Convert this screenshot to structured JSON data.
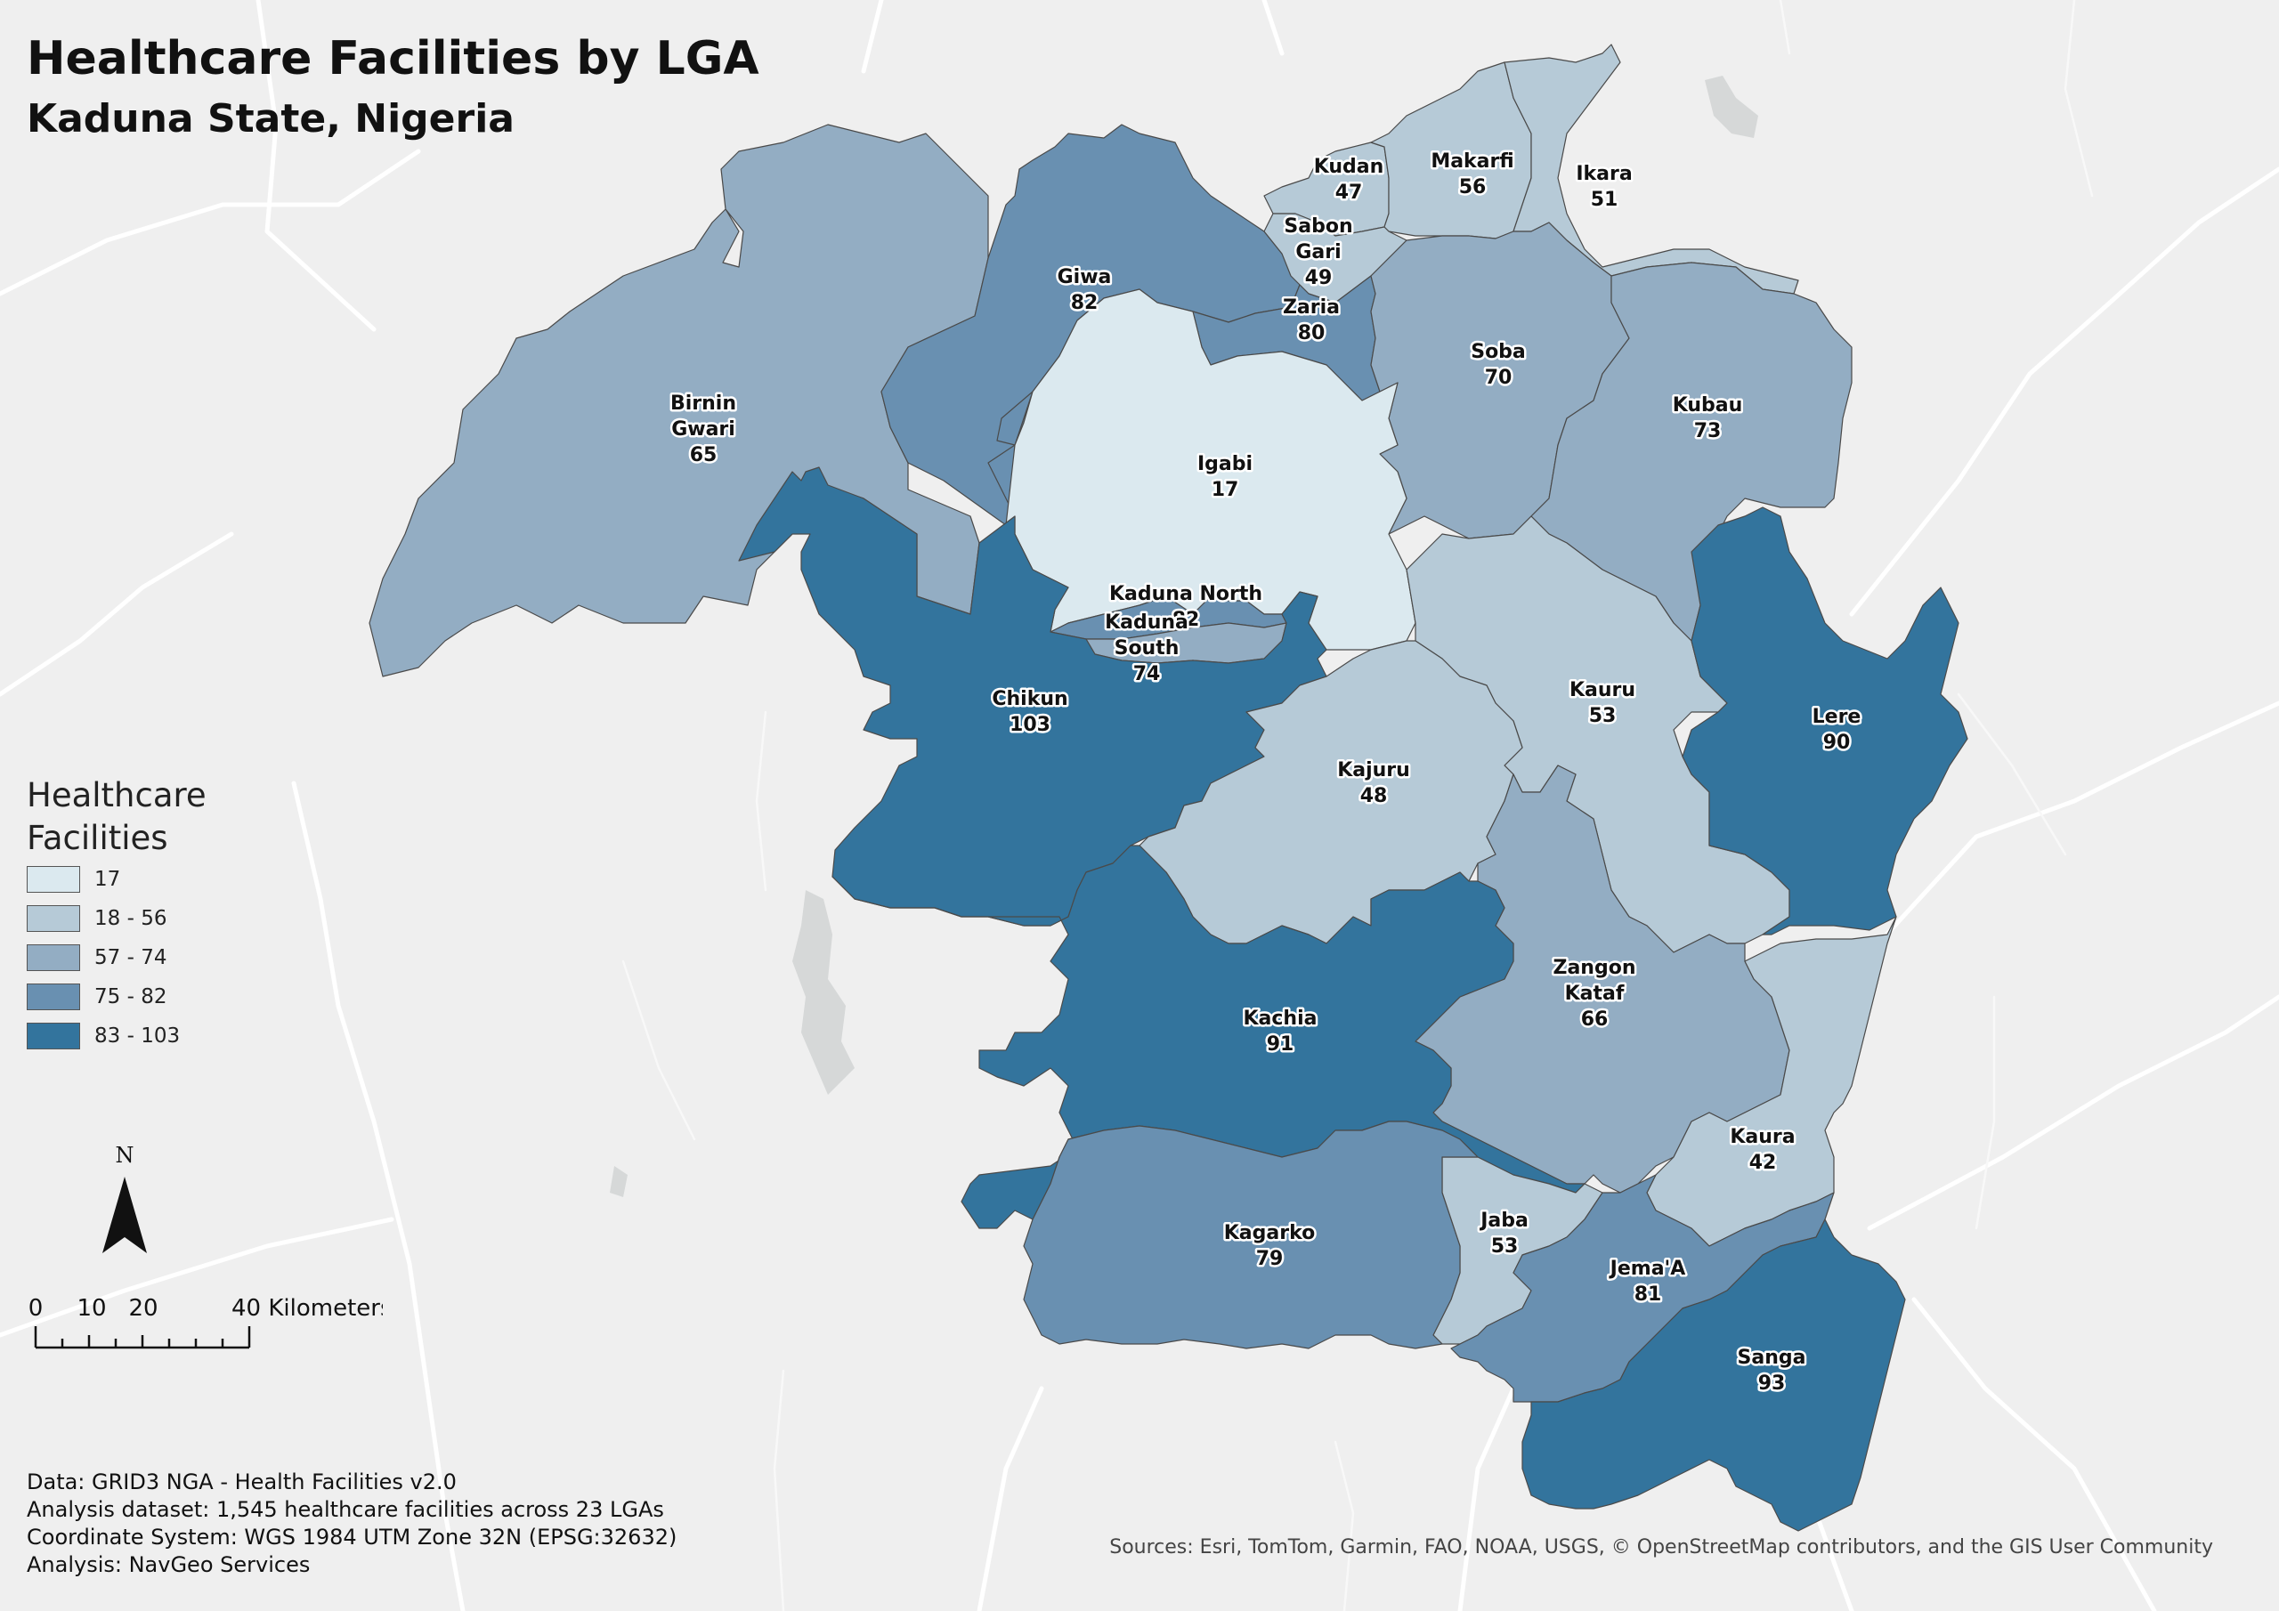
{
  "title": "Healthcare Facilities by LGA",
  "subtitle": "Kaduna State, Nigeria",
  "legend": {
    "title": "Healthcare Facilities",
    "classes": [
      {
        "label": "17",
        "color": "#dbe9ef"
      },
      {
        "label": "18 - 56",
        "color": "#b6cad7"
      },
      {
        "label": "57 - 74",
        "color": "#93adc3"
      },
      {
        "label": "75 - 82",
        "color": "#6990b1"
      },
      {
        "label": "83 - 103",
        "color": "#33749d"
      }
    ]
  },
  "north_arrow": {
    "label": "N"
  },
  "scale_bar": {
    "ticks": [
      "0",
      "10",
      "20",
      "40 Kilometers"
    ]
  },
  "credits": [
    "Data: GRID3 NGA - Health Facilities v2.0",
    "Analysis dataset: 1,545 healthcare facilities across 23 LGAs",
    "Coordinate System: WGS 1984 UTM Zone 32N (EPSG:32632)",
    "Analysis: NavGeo Services"
  ],
  "sources": "Sources: Esri, TomTom, Garmin, FAO, NOAA, USGS, © OpenStreetMap contributors, and the GIS User Community",
  "lgas": [
    {
      "name": "Birnin Gwari",
      "lines": [
        "Birnin",
        "Gwari"
      ],
      "value": 65,
      "class": 2
    },
    {
      "name": "Giwa",
      "lines": [
        "Giwa"
      ],
      "value": 82,
      "class": 3
    },
    {
      "name": "Kudan",
      "lines": [
        "Kudan"
      ],
      "value": 47,
      "class": 1
    },
    {
      "name": "Makarfi",
      "lines": [
        "Makarfi"
      ],
      "value": 56,
      "class": 1
    },
    {
      "name": "Ikara",
      "lines": [
        "Ikara"
      ],
      "value": 51,
      "class": 1
    },
    {
      "name": "Sabon Gari",
      "lines": [
        "Sabon",
        "Gari"
      ],
      "value": 49,
      "class": 1
    },
    {
      "name": "Zaria",
      "lines": [
        "Zaria"
      ],
      "value": 80,
      "class": 3
    },
    {
      "name": "Soba",
      "lines": [
        "Soba"
      ],
      "value": 70,
      "class": 2
    },
    {
      "name": "Kubau",
      "lines": [
        "Kubau"
      ],
      "value": 73,
      "class": 2
    },
    {
      "name": "Igabi",
      "lines": [
        "Igabi"
      ],
      "value": 17,
      "class": 0
    },
    {
      "name": "Kaduna North",
      "lines": [
        "Kaduna North"
      ],
      "value": 82,
      "class": 3
    },
    {
      "name": "Kaduna South",
      "lines": [
        "Kaduna",
        "South"
      ],
      "value": 74,
      "class": 2
    },
    {
      "name": "Chikun",
      "lines": [
        "Chikun"
      ],
      "value": 103,
      "class": 4
    },
    {
      "name": "Kauru",
      "lines": [
        "Kauru"
      ],
      "value": 53,
      "class": 1
    },
    {
      "name": "Lere",
      "lines": [
        "Lere"
      ],
      "value": 90,
      "class": 4
    },
    {
      "name": "Kajuru",
      "lines": [
        "Kajuru"
      ],
      "value": 48,
      "class": 1
    },
    {
      "name": "Zangon Kataf",
      "lines": [
        "Zangon",
        "Kataf"
      ],
      "value": 66,
      "class": 2
    },
    {
      "name": "Kachia",
      "lines": [
        "Kachia"
      ],
      "value": 91,
      "class": 4
    },
    {
      "name": "Kaura",
      "lines": [
        "Kaura"
      ],
      "value": 42,
      "class": 1
    },
    {
      "name": "Jaba",
      "lines": [
        "Jaba"
      ],
      "value": 53,
      "class": 1
    },
    {
      "name": "Kagarko",
      "lines": [
        "Kagarko"
      ],
      "value": 79,
      "class": 3
    },
    {
      "name": "Jema'A",
      "lines": [
        "Jema'A"
      ],
      "value": 81,
      "class": 3
    },
    {
      "name": "Sanga",
      "lines": [
        "Sanga"
      ],
      "value": 93,
      "class": 4
    }
  ]
}
